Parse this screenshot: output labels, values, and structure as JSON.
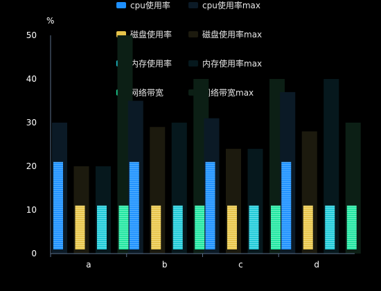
{
  "chart_data": {
    "type": "bar",
    "categories": [
      "a",
      "b",
      "c",
      "d"
    ],
    "y_unit_label": "%",
    "ylim": [
      0,
      50
    ],
    "yticks": [
      0,
      10,
      20,
      30,
      40,
      50
    ],
    "grid": false,
    "legend_placement": "top-center",
    "series": [
      {
        "name": "cpu使用率",
        "role": "value",
        "color": "#1e90ff",
        "stripe": "#7ec8ff",
        "values": [
          20,
          20,
          20,
          20
        ]
      },
      {
        "name": "cpu使用率max",
        "role": "max",
        "color": "#0b1a26",
        "values": [
          30,
          35,
          31,
          37
        ]
      },
      {
        "name": "磁盘使用率",
        "role": "value",
        "color": "#e6c34a",
        "stripe": "#fff0a8",
        "values": [
          10,
          10,
          10,
          10
        ]
      },
      {
        "name": "磁盘使用率max",
        "role": "max",
        "color": "#1c1a0e",
        "values": [
          20,
          29,
          24,
          28
        ]
      },
      {
        "name": "内存使用率",
        "role": "value",
        "color": "#1ec8d6",
        "stripe": "#9ff4fa",
        "values": [
          10,
          10,
          10,
          10
        ]
      },
      {
        "name": "内存使用率max",
        "role": "max",
        "color": "#06181d",
        "values": [
          20,
          30,
          24,
          40
        ]
      },
      {
        "name": "网络带宽",
        "role": "value",
        "color": "#1ee4a0",
        "stripe": "#a6ffd9",
        "values": [
          10,
          10,
          10,
          10
        ]
      },
      {
        "name": "网络带宽max",
        "role": "max",
        "color": "#0c1f15",
        "values": [
          50,
          40,
          40,
          30
        ]
      }
    ]
  }
}
